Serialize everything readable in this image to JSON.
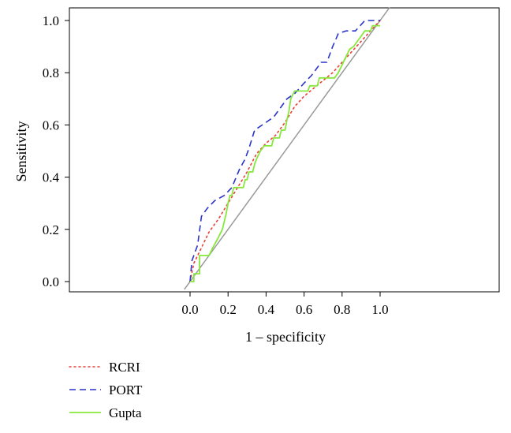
{
  "chart_data": {
    "type": "line",
    "title": "",
    "xlabel": "1 – specificity",
    "ylabel": "Sensitivity",
    "xlim": [
      -0.05,
      1.05
    ],
    "ylim": [
      -0.02,
      1.0
    ],
    "x_ticks": [
      "0.0",
      "0.2",
      "0.4",
      "0.6",
      "0.8",
      "1.0"
    ],
    "y_ticks": [
      "0.0",
      "0.2",
      "0.4",
      "0.6",
      "0.8",
      "1.0"
    ],
    "grid": false,
    "legend_position": "bottom-left",
    "reference_line": {
      "points": [
        [
          -0.03,
          -0.03
        ],
        [
          1.05,
          1.05
        ]
      ],
      "color": "#999999"
    },
    "series": [
      {
        "name": "RCRI",
        "color": "#e8403a",
        "style": "dotted",
        "points": [
          [
            0.0,
            0.0
          ],
          [
            0.02,
            0.07
          ],
          [
            0.06,
            0.13
          ],
          [
            0.1,
            0.19
          ],
          [
            0.15,
            0.24
          ],
          [
            0.2,
            0.3
          ],
          [
            0.25,
            0.36
          ],
          [
            0.3,
            0.42
          ],
          [
            0.35,
            0.49
          ],
          [
            0.4,
            0.53
          ],
          [
            0.45,
            0.56
          ],
          [
            0.5,
            0.61
          ],
          [
            0.55,
            0.67
          ],
          [
            0.6,
            0.71
          ],
          [
            0.65,
            0.74
          ],
          [
            0.7,
            0.77
          ],
          [
            0.75,
            0.8
          ],
          [
            0.8,
            0.84
          ],
          [
            0.85,
            0.88
          ],
          [
            0.9,
            0.92
          ],
          [
            0.95,
            0.96
          ],
          [
            1.0,
            1.0
          ]
        ]
      },
      {
        "name": "PORT",
        "color": "#2b33c8",
        "style": "dashed",
        "points": [
          [
            0.0,
            0.0
          ],
          [
            0.01,
            0.08
          ],
          [
            0.04,
            0.14
          ],
          [
            0.06,
            0.25
          ],
          [
            0.09,
            0.28
          ],
          [
            0.13,
            0.31
          ],
          [
            0.18,
            0.33
          ],
          [
            0.22,
            0.36
          ],
          [
            0.26,
            0.43
          ],
          [
            0.29,
            0.47
          ],
          [
            0.31,
            0.51
          ],
          [
            0.34,
            0.58
          ],
          [
            0.38,
            0.6
          ],
          [
            0.44,
            0.63
          ],
          [
            0.47,
            0.66
          ],
          [
            0.51,
            0.7
          ],
          [
            0.55,
            0.72
          ],
          [
            0.6,
            0.76
          ],
          [
            0.64,
            0.79
          ],
          [
            0.69,
            0.84
          ],
          [
            0.72,
            0.84
          ],
          [
            0.75,
            0.9
          ],
          [
            0.78,
            0.95
          ],
          [
            0.82,
            0.96
          ],
          [
            0.87,
            0.96
          ],
          [
            0.92,
            1.0
          ],
          [
            1.0,
            1.0
          ]
        ]
      },
      {
        "name": "Gupta",
        "color": "#86e83a",
        "style": "solid",
        "points": [
          [
            0.0,
            0.0
          ],
          [
            0.02,
            0.0
          ],
          [
            0.02,
            0.03
          ],
          [
            0.05,
            0.03
          ],
          [
            0.05,
            0.1
          ],
          [
            0.1,
            0.1
          ],
          [
            0.12,
            0.13
          ],
          [
            0.15,
            0.17
          ],
          [
            0.17,
            0.2
          ],
          [
            0.19,
            0.26
          ],
          [
            0.2,
            0.3
          ],
          [
            0.21,
            0.33
          ],
          [
            0.22,
            0.33
          ],
          [
            0.23,
            0.36
          ],
          [
            0.28,
            0.36
          ],
          [
            0.29,
            0.39
          ],
          [
            0.3,
            0.39
          ],
          [
            0.31,
            0.42
          ],
          [
            0.33,
            0.42
          ],
          [
            0.34,
            0.45
          ],
          [
            0.35,
            0.47
          ],
          [
            0.37,
            0.5
          ],
          [
            0.39,
            0.52
          ],
          [
            0.43,
            0.52
          ],
          [
            0.44,
            0.55
          ],
          [
            0.47,
            0.55
          ],
          [
            0.48,
            0.58
          ],
          [
            0.5,
            0.58
          ],
          [
            0.51,
            0.62
          ],
          [
            0.52,
            0.65
          ],
          [
            0.53,
            0.7
          ],
          [
            0.55,
            0.73
          ],
          [
            0.62,
            0.73
          ],
          [
            0.63,
            0.75
          ],
          [
            0.67,
            0.75
          ],
          [
            0.68,
            0.78
          ],
          [
            0.76,
            0.78
          ],
          [
            0.78,
            0.8
          ],
          [
            0.8,
            0.83
          ],
          [
            0.82,
            0.86
          ],
          [
            0.84,
            0.89
          ],
          [
            0.86,
            0.9
          ],
          [
            0.88,
            0.92
          ],
          [
            0.9,
            0.94
          ],
          [
            0.92,
            0.96
          ],
          [
            0.95,
            0.96
          ],
          [
            0.96,
            0.98
          ],
          [
            1.0,
            0.98
          ]
        ]
      }
    ]
  }
}
